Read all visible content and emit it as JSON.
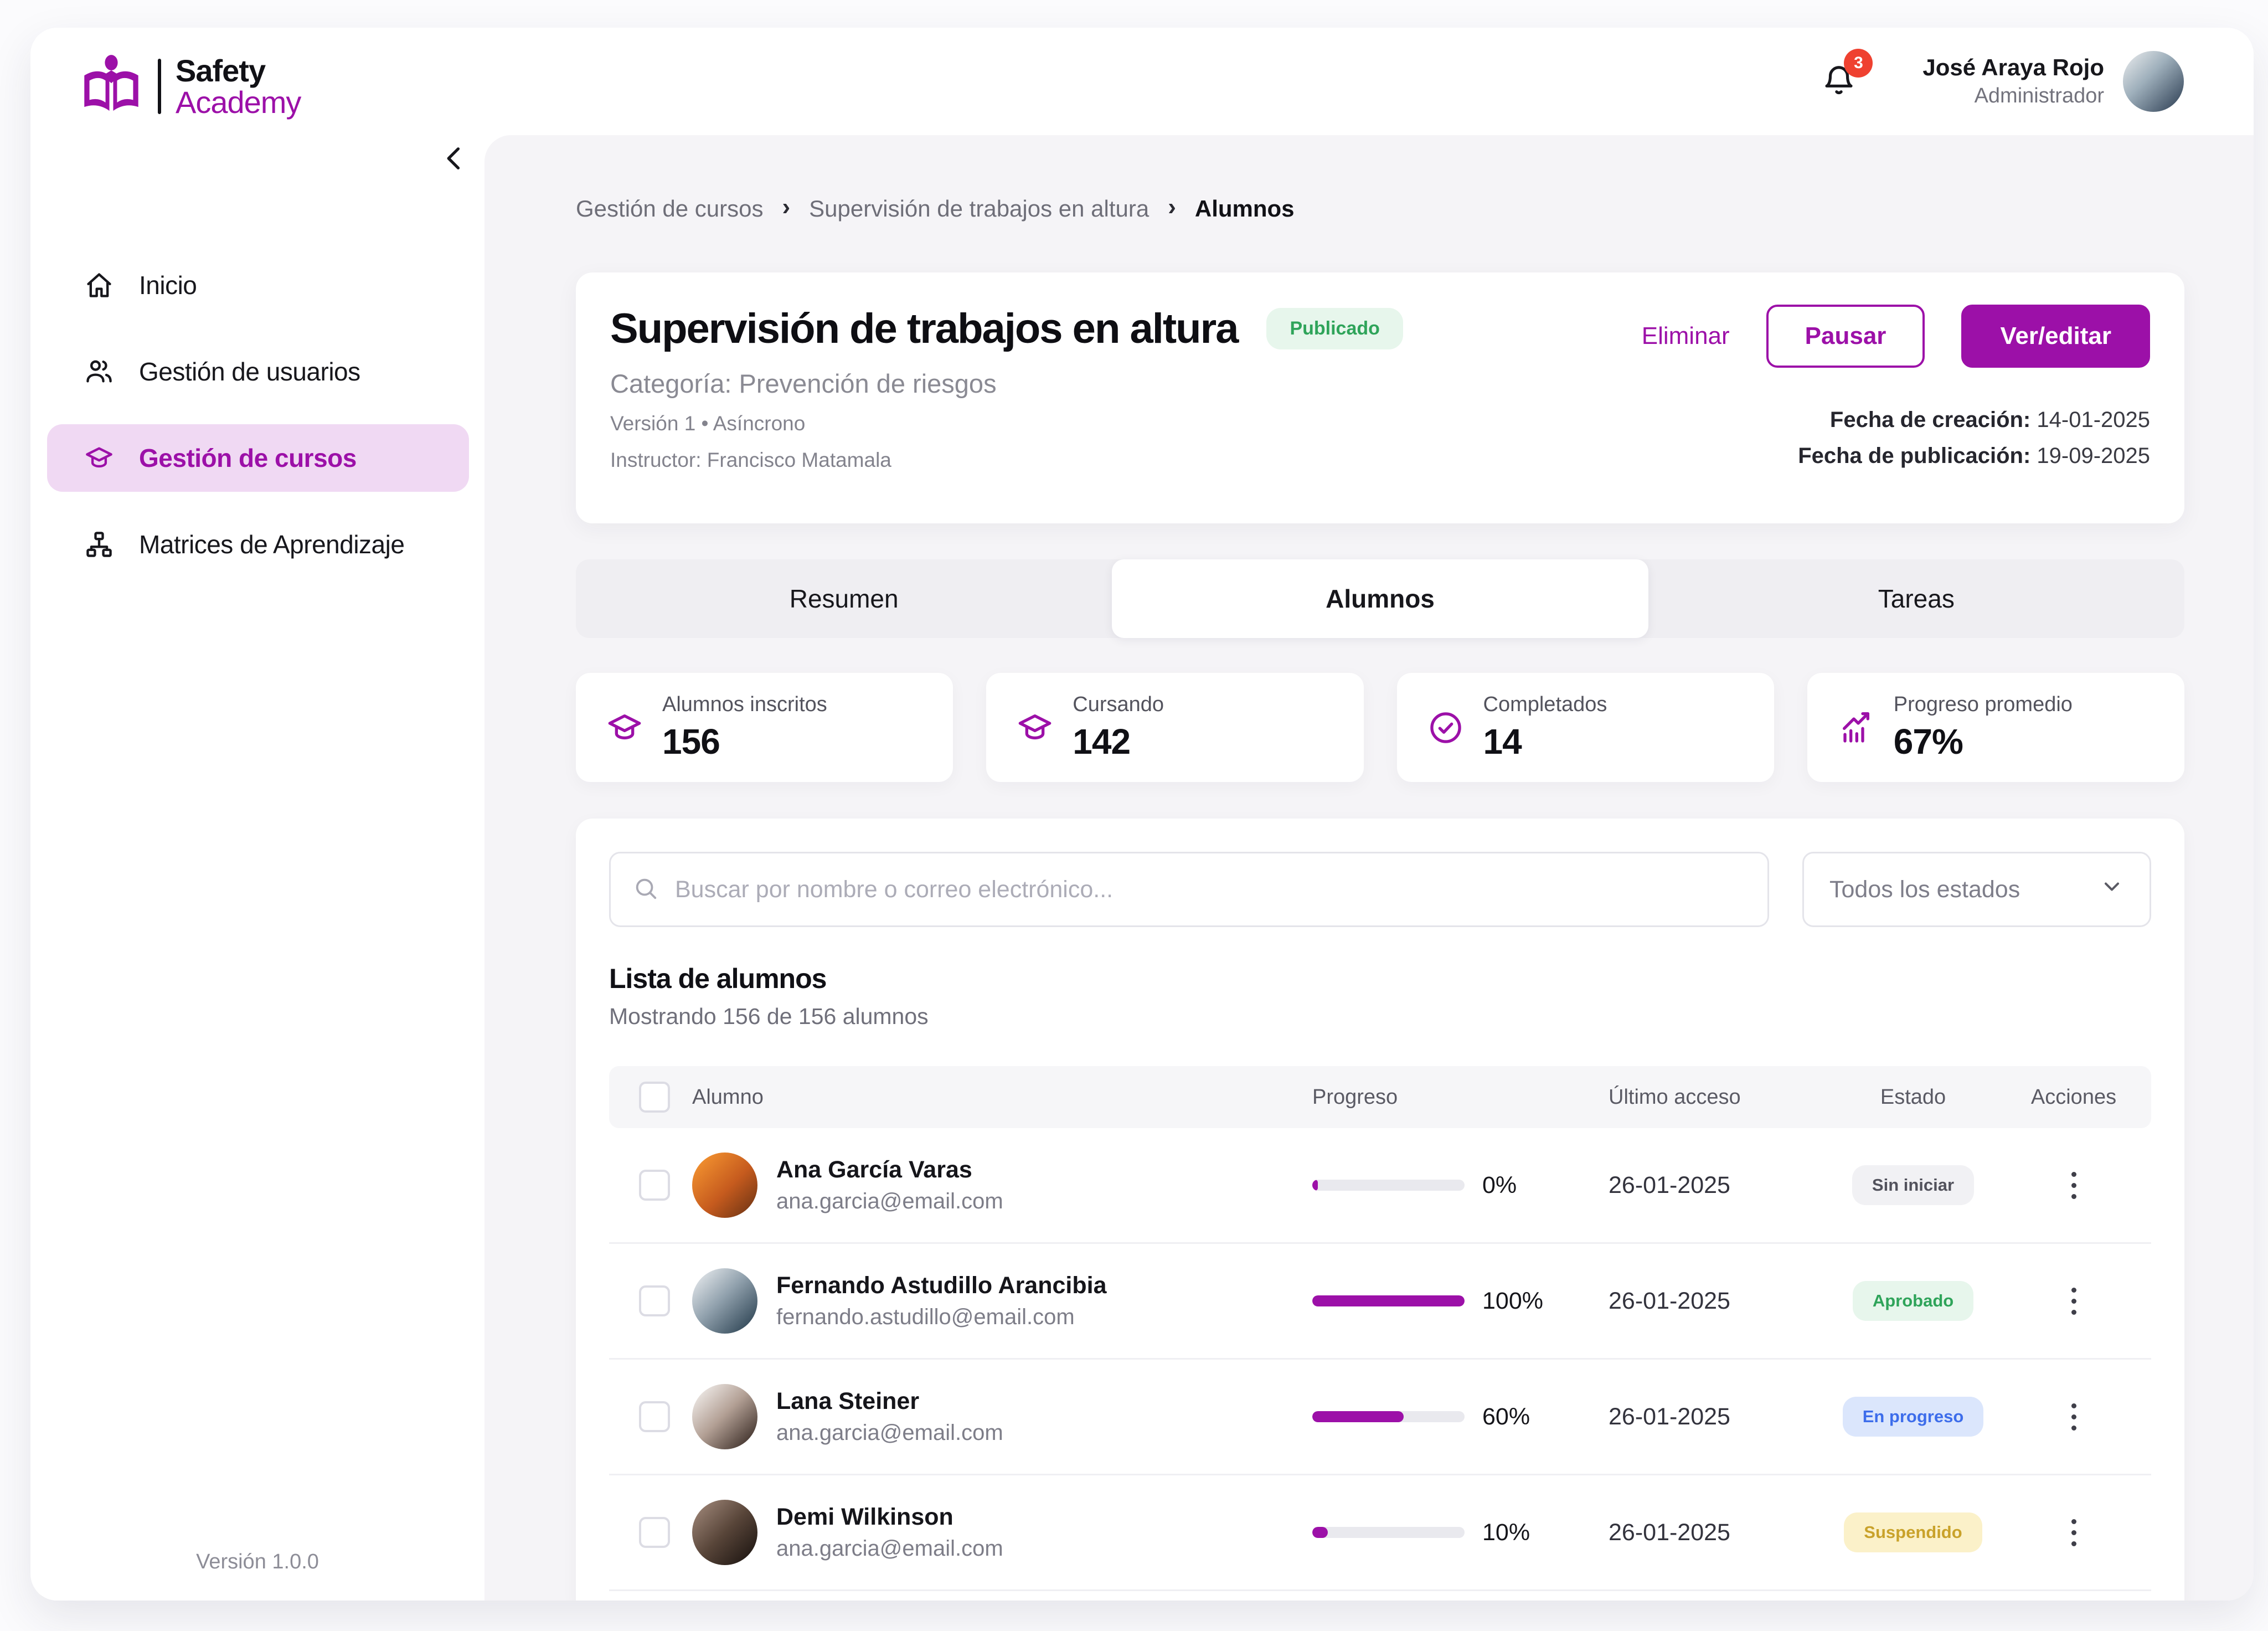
{
  "colors": {
    "primary": "#9C10A8",
    "primary_light": "#F0D9F3",
    "green": "#2FA45A",
    "green_bg": "#E7F6EC",
    "blue": "#3D6DEB",
    "blue_bg": "#DBE6FC",
    "yellow": "#C9A22A",
    "yellow_bg": "#FBF1C9",
    "gray_badge": "#52525C",
    "gray_badge_bg": "#F1F1F4",
    "notification": "#EF4130"
  },
  "app": {
    "brand_top": "Safety",
    "brand_bottom": "Academy",
    "version": "Versión 1.0.0"
  },
  "sidebar": {
    "items": [
      {
        "slug": "inicio",
        "icon": "home",
        "label": "Inicio",
        "active": false
      },
      {
        "slug": "gestion-usuarios",
        "icon": "users",
        "label": "Gestión de usuarios",
        "active": false
      },
      {
        "slug": "gestion-cursos",
        "icon": "grad-cap",
        "label": "Gestión de cursos",
        "active": true
      },
      {
        "slug": "matrices-aprendizaje",
        "icon": "sitemap",
        "label": "Matrices de Aprendizaje",
        "active": false
      }
    ]
  },
  "header": {
    "notification_count": "3",
    "user_name": "José Araya Rojo",
    "user_role": "Administrador"
  },
  "breadcrumb": {
    "items": [
      "Gestión de cursos",
      "Supervisión de trabajos en altura",
      "Alumnos"
    ]
  },
  "course": {
    "title": "Supervisión de trabajos en altura",
    "status_badge": "Publicado",
    "category": "Categoría: Prevención de riesgos",
    "version_line": "Versión 1 • Asíncrono",
    "instructor_line": "Instructor: Francisco Matamala",
    "actions": {
      "delete": "Eliminar",
      "pause": "Pausar",
      "view_edit": "Ver/editar"
    },
    "created_label": "Fecha de creación:",
    "created_value": "14-01-2025",
    "published_label": "Fecha de publicación:",
    "published_value": "19-09-2025"
  },
  "tabs": [
    {
      "label": "Resumen",
      "active": false
    },
    {
      "label": "Alumnos",
      "active": true
    },
    {
      "label": "Tareas",
      "active": false
    }
  ],
  "stats": [
    {
      "icon": "grad-cap",
      "label": "Alumnos inscritos",
      "value": "156"
    },
    {
      "icon": "grad-cap",
      "label": "Cursando",
      "value": "142"
    },
    {
      "icon": "check-circle",
      "label": "Completados",
      "value": "14"
    },
    {
      "icon": "chart",
      "label": "Progreso promedio",
      "value": "67%"
    }
  ],
  "filters": {
    "search_placeholder": "Buscar por nombre o correo electrónico...",
    "status_filter": "Todos los estados"
  },
  "list": {
    "title": "Lista de alumnos",
    "subtitle": "Mostrando 156 de 156 alumnos",
    "columns": [
      "Alumno",
      "Progreso",
      "Último acceso",
      "Estado",
      "Acciones"
    ],
    "students": [
      {
        "avatar_id": "ana",
        "name": "Ana García Varas",
        "email": "ana.garcia@email.com",
        "progress": 0,
        "progress_label": "0%",
        "last_access": "26-01-2025",
        "status": "Sin iniciar",
        "status_type": "none"
      },
      {
        "avatar_id": "fernando",
        "name": "Fernando Astudillo Arancibia",
        "email": "fernando.astudillo@email.com",
        "progress": 100,
        "progress_label": "100%",
        "last_access": "26-01-2025",
        "status": "Aprobado",
        "status_type": "approved"
      },
      {
        "avatar_id": "lana",
        "name": "Lana Steiner",
        "email": "ana.garcia@email.com",
        "progress": 60,
        "progress_label": "60%",
        "last_access": "26-01-2025",
        "status": "En progreso",
        "status_type": "progress"
      },
      {
        "avatar_id": "demi",
        "name": "Demi Wilkinson",
        "email": "ana.garcia@email.com",
        "progress": 10,
        "progress_label": "10%",
        "last_access": "26-01-2025",
        "status": "Suspendido",
        "status_type": "suspended"
      }
    ]
  }
}
